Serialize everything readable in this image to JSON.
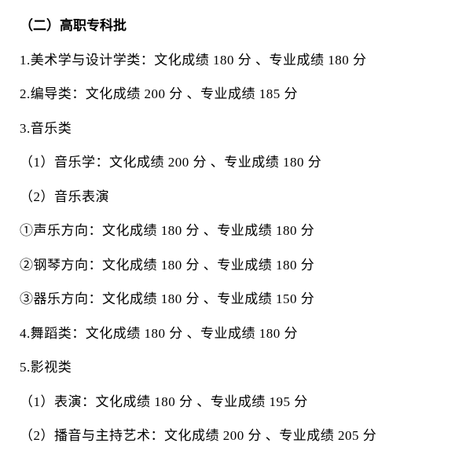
{
  "heading": "（二）高职专科批",
  "lines": [
    "1.美术学与设计学类：文化成绩 180 分 、专业成绩 180 分",
    "2.编导类：文化成绩 200 分 、专业成绩 185 分",
    "3.音乐类",
    "（1）音乐学：文化成绩 200 分 、专业成绩 180 分",
    "（2）音乐表演",
    "①声乐方向：文化成绩 180 分 、专业成绩 180 分",
    "②钢琴方向：文化成绩 180 分 、专业成绩 180 分",
    "③器乐方向：文化成绩 180 分 、专业成绩 150 分",
    "4.舞蹈类：文化成绩 180 分 、专业成绩 180 分",
    "5.影视类",
    "（1）表演：文化成绩 180 分 、专业成绩 195 分",
    "（2）播音与主持艺术：文化成绩 200 分 、专业成绩 205 分"
  ]
}
